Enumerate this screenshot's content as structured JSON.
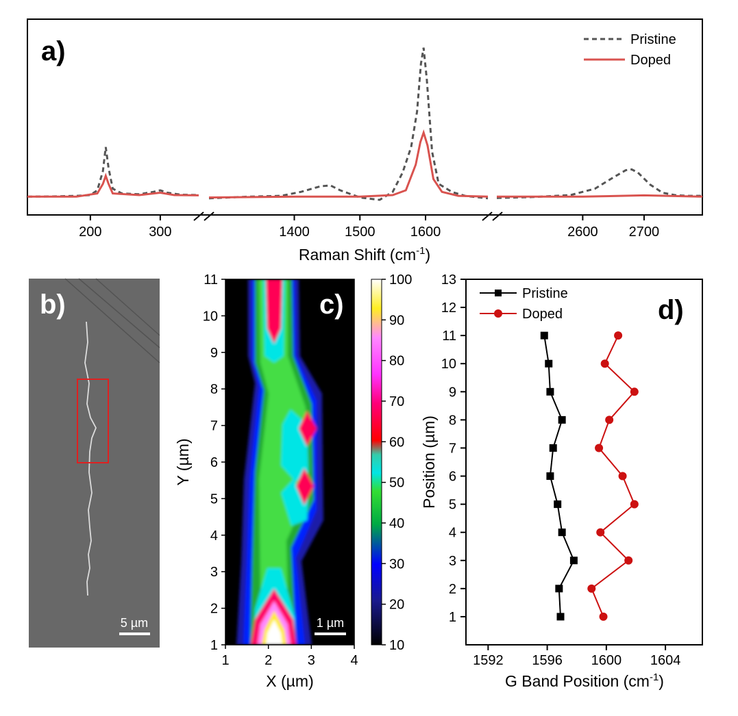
{
  "panels": {
    "a": {
      "label": "a)"
    },
    "b": {
      "label": "b)",
      "scale_bar": "5 µm"
    },
    "c": {
      "label": "c)",
      "scale_bar": "1 µm"
    },
    "d": {
      "label": "d)"
    }
  },
  "chart_data": [
    {
      "id": "a",
      "type": "line",
      "xlabel_main": "Raman Shift (cm",
      "xlabel_sup": "-1",
      "xlabel_end": ")",
      "segments": [
        {
          "range": [
            110,
            355
          ],
          "ticks": [
            200,
            300
          ]
        },
        {
          "range": [
            1270,
            1695
          ],
          "ticks": [
            1400,
            1500,
            1600
          ]
        },
        {
          "range": [
            2460,
            2795
          ],
          "ticks": [
            2600,
            2700
          ]
        }
      ],
      "axis_break": true,
      "legend_position": "top-right",
      "series": [
        {
          "name": "Pristine",
          "color": "#555555",
          "dash": true,
          "points": [
            [
              110,
              0.02
            ],
            [
              150,
              0.022
            ],
            [
              180,
              0.025
            ],
            [
              200,
              0.03
            ],
            [
              210,
              0.06
            ],
            [
              218,
              0.18
            ],
            [
              222,
              0.33
            ],
            [
              226,
              0.2
            ],
            [
              232,
              0.07
            ],
            [
              245,
              0.04
            ],
            [
              270,
              0.035
            ],
            [
              290,
              0.05
            ],
            [
              300,
              0.06
            ],
            [
              310,
              0.045
            ],
            [
              330,
              0.032
            ],
            [
              355,
              0.03
            ],
            [
              1270,
              0.01
            ],
            [
              1330,
              0.02
            ],
            [
              1380,
              0.025
            ],
            [
              1410,
              0.05
            ],
            [
              1440,
              0.085
            ],
            [
              1455,
              0.09
            ],
            [
              1470,
              0.06
            ],
            [
              1500,
              0.015
            ],
            [
              1530,
              0.0
            ],
            [
              1550,
              0.05
            ],
            [
              1565,
              0.17
            ],
            [
              1578,
              0.33
            ],
            [
              1587,
              0.55
            ],
            [
              1593,
              0.85
            ],
            [
              1597,
              0.95
            ],
            [
              1602,
              0.75
            ],
            [
              1610,
              0.3
            ],
            [
              1620,
              0.1
            ],
            [
              1640,
              0.05
            ],
            [
              1660,
              0.025
            ],
            [
              1695,
              0.01
            ],
            [
              2460,
              0.012
            ],
            [
              2520,
              0.018
            ],
            [
              2580,
              0.03
            ],
            [
              2620,
              0.07
            ],
            [
              2650,
              0.14
            ],
            [
              2670,
              0.185
            ],
            [
              2680,
              0.19
            ],
            [
              2690,
              0.17
            ],
            [
              2710,
              0.095
            ],
            [
              2730,
              0.045
            ],
            [
              2750,
              0.03
            ],
            [
              2770,
              0.025
            ],
            [
              2795,
              0.025
            ]
          ]
        },
        {
          "name": "Doped",
          "color": "#d9534f",
          "dash": false,
          "points": [
            [
              110,
              0.02
            ],
            [
              180,
              0.02
            ],
            [
              210,
              0.04
            ],
            [
              218,
              0.1
            ],
            [
              222,
              0.15
            ],
            [
              226,
              0.1
            ],
            [
              232,
              0.04
            ],
            [
              270,
              0.03
            ],
            [
              300,
              0.045
            ],
            [
              320,
              0.03
            ],
            [
              355,
              0.028
            ],
            [
              1270,
              0.015
            ],
            [
              1400,
              0.02
            ],
            [
              1500,
              0.02
            ],
            [
              1550,
              0.03
            ],
            [
              1570,
              0.06
            ],
            [
              1585,
              0.22
            ],
            [
              1592,
              0.36
            ],
            [
              1597,
              0.42
            ],
            [
              1603,
              0.34
            ],
            [
              1612,
              0.13
            ],
            [
              1625,
              0.05
            ],
            [
              1650,
              0.025
            ],
            [
              1695,
              0.02
            ],
            [
              2460,
              0.02
            ],
            [
              2600,
              0.02
            ],
            [
              2700,
              0.028
            ],
            [
              2795,
              0.02
            ]
          ]
        }
      ]
    },
    {
      "id": "c",
      "type": "heatmap",
      "xlabel": "X (µm)",
      "ylabel": "Y (µm)",
      "xlim": [
        1,
        4
      ],
      "ylim": [
        1,
        11
      ],
      "xticks": [
        1,
        2,
        3,
        4
      ],
      "yticks": [
        1,
        2,
        3,
        4,
        5,
        6,
        7,
        8,
        9,
        10,
        11
      ],
      "colorbar": {
        "range": [
          10,
          100
        ],
        "ticks": [
          10,
          20,
          30,
          40,
          50,
          60,
          70,
          80,
          90,
          100
        ]
      },
      "hotspots": [
        {
          "x": 2.1,
          "y": 10.4,
          "value": 64
        },
        {
          "x": 2.9,
          "y": 6.9,
          "value": 65
        },
        {
          "x": 2.9,
          "y": 5.2,
          "value": 66
        },
        {
          "x": 2.1,
          "y": 1.2,
          "value": 100
        }
      ]
    },
    {
      "id": "d",
      "type": "line",
      "xlabel_main": "G Band Position (cm",
      "xlabel_sup": "-1",
      "xlabel_end": ")",
      "ylabel": "Position (µm)",
      "xlim": [
        1590.5,
        1606.5
      ],
      "ylim": [
        0,
        13
      ],
      "xticks": [
        1592,
        1596,
        1600,
        1604
      ],
      "yticks": [
        1,
        2,
        3,
        4,
        5,
        6,
        7,
        8,
        9,
        10,
        11,
        12,
        13
      ],
      "legend_position": "top-left",
      "series": [
        {
          "name": "Pristine",
          "color": "#000000",
          "marker": "square",
          "x": [
            1596.9,
            1596.8,
            1597.8,
            1597.0,
            1596.7,
            1596.2,
            1596.4,
            1597.0,
            1596.2,
            1596.1,
            1595.8
          ],
          "y": [
            1,
            2,
            3,
            4,
            5,
            6,
            7,
            8,
            9,
            10,
            11
          ]
        },
        {
          "name": "Doped",
          "color": "#cc1111",
          "marker": "circle",
          "x": [
            1599.8,
            1599.0,
            1601.5,
            1599.6,
            1601.9,
            1601.1,
            1599.5,
            1600.2,
            1601.9,
            1599.9,
            1600.8
          ],
          "y": [
            1,
            2,
            3,
            4,
            5,
            6,
            7,
            8,
            9,
            10,
            11
          ]
        }
      ]
    }
  ]
}
